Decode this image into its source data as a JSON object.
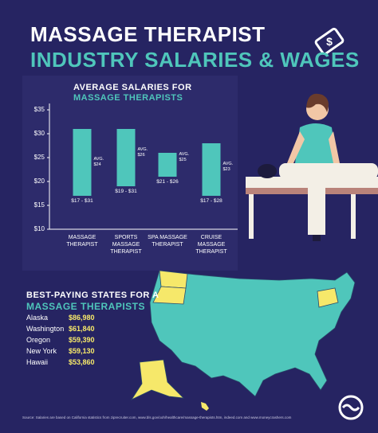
{
  "header": {
    "title": "MASSAGE THERAPIST",
    "subtitle": "INDUSTRY SALARIES & WAGES"
  },
  "chart_data": {
    "type": "floating-bar",
    "title": "AVERAGE SALARIES FOR",
    "subtitle": "MASSAGE THERAPISTS",
    "categories": [
      "MASSAGE THERAPIST",
      "SPORTS MASSAGE THERAPIST",
      "SPA MASSAGE THERAPIST",
      "CRUISE MASSAGE THERAPIST"
    ],
    "ranges": [
      [
        17,
        31
      ],
      [
        19,
        31
      ],
      [
        21,
        26
      ],
      [
        17,
        28
      ]
    ],
    "range_labels": [
      "$17 - $31",
      "$19 - $31",
      "$21 - $26",
      "$17 - $28"
    ],
    "averages": [
      24,
      26,
      25,
      23
    ],
    "average_labels": [
      "AVG. $24",
      "AVG. $26",
      "AVG. $25",
      "AVG. $23"
    ],
    "color": "#4fc6bb",
    "ylim": [
      10,
      35
    ],
    "yticks": [
      {
        "value": 10,
        "label": "$10"
      },
      {
        "value": 15,
        "label": "$15"
      },
      {
        "value": 20,
        "label": "$20"
      },
      {
        "value": 25,
        "label": "$25"
      },
      {
        "value": 30,
        "label": "$30"
      },
      {
        "value": 35,
        "label": "$35"
      }
    ]
  },
  "states": {
    "title": "BEST-PAYING STATES FOR A",
    "subtitle": "MASSAGE THERAPISTS",
    "rows": [
      [
        "Alaska",
        "$86,980"
      ],
      [
        "Washington",
        "$61,840"
      ],
      [
        "Oregon",
        "$59,390"
      ],
      [
        "New York",
        "$59,130"
      ],
      [
        "Hawaii",
        "$53,860"
      ]
    ]
  },
  "source": "Source: Salaries are based on California statistics from ziprecruiter.com, www.bls.gov/ooh/healthcare/massage-therapists.htm, indeed.com and www.moneycrashers.com"
}
